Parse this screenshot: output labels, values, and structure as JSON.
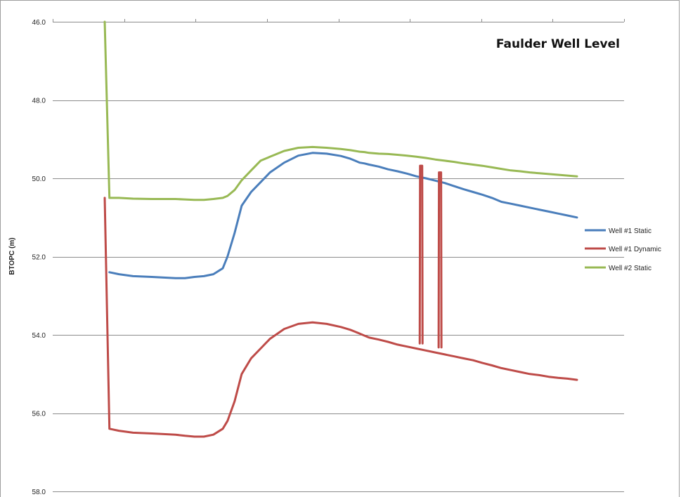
{
  "chart_data": {
    "type": "line",
    "title": "Faulder Well Level",
    "ylabel": "BTOPC (m)",
    "xlabel": "",
    "ylim": [
      46,
      58
    ],
    "y_inverted": true,
    "yticks": [
      "46.0",
      "48.0",
      "50.0",
      "52.0",
      "54.0",
      "56.0",
      "58.0"
    ],
    "grid": "horizontal",
    "legend_position": "right",
    "x": [
      0,
      1,
      3,
      6,
      10,
      15,
      17,
      19,
      21,
      23,
      25,
      26,
      27.5,
      29,
      31,
      33,
      35,
      38,
      41,
      44,
      47,
      50,
      52,
      53,
      54,
      55,
      56,
      58,
      60,
      62,
      64,
      66,
      68,
      70,
      72,
      74,
      76,
      78,
      80,
      82,
      84,
      86,
      88,
      90,
      92,
      94,
      96,
      98,
      100
    ],
    "series": [
      {
        "name": "Well #1 Static",
        "color": "#4a7ebb",
        "values": [
          null,
          52.4,
          52.45,
          52.5,
          52.52,
          52.55,
          52.55,
          52.52,
          52.5,
          52.45,
          52.3,
          52.0,
          51.4,
          50.7,
          50.35,
          50.1,
          49.85,
          49.6,
          49.42,
          49.35,
          49.37,
          49.43,
          49.5,
          49.55,
          49.6,
          49.62,
          49.65,
          49.7,
          49.77,
          49.82,
          49.88,
          49.95,
          50.0,
          50.06,
          50.12,
          50.2,
          50.28,
          50.35,
          50.42,
          50.5,
          50.6,
          50.65,
          50.7,
          50.75,
          50.8,
          50.85,
          50.9,
          50.95,
          51.0
        ]
      },
      {
        "name": "Well #1 Dynamic",
        "color": "#be4b48",
        "values": [
          50.5,
          56.4,
          56.45,
          56.5,
          56.52,
          56.55,
          56.58,
          56.6,
          56.6,
          56.55,
          56.4,
          56.2,
          55.7,
          55.0,
          54.6,
          54.35,
          54.1,
          53.85,
          53.72,
          53.68,
          53.72,
          53.8,
          53.87,
          53.92,
          53.97,
          54.02,
          54.07,
          54.12,
          54.18,
          54.25,
          54.3,
          54.35,
          54.4,
          54.45,
          54.5,
          54.55,
          54.6,
          54.65,
          54.72,
          54.78,
          54.85,
          54.9,
          54.95,
          55.0,
          55.03,
          55.07,
          55.1,
          55.12,
          55.15
        ]
      },
      {
        "name": "Well #2 Static",
        "color": "#98b954",
        "values": [
          46.0,
          50.5,
          50.5,
          50.52,
          50.53,
          50.53,
          50.54,
          50.55,
          50.55,
          50.53,
          50.5,
          50.45,
          50.3,
          50.05,
          49.8,
          49.55,
          49.45,
          49.3,
          49.22,
          49.2,
          49.22,
          49.25,
          49.28,
          49.3,
          49.32,
          49.33,
          49.35,
          49.37,
          49.38,
          49.4,
          49.42,
          49.45,
          49.48,
          49.52,
          49.55,
          49.58,
          49.62,
          49.65,
          49.68,
          49.72,
          49.76,
          49.8,
          49.82,
          49.85,
          49.87,
          49.89,
          49.91,
          49.93,
          49.95
        ]
      }
    ],
    "spikes": [
      {
        "series": "Well #1 Dynamic",
        "x": 67,
        "from": 49.68,
        "to": 54.22
      },
      {
        "series": "Well #1 Dynamic",
        "x": 71,
        "from": 49.85,
        "to": 54.32
      }
    ]
  }
}
